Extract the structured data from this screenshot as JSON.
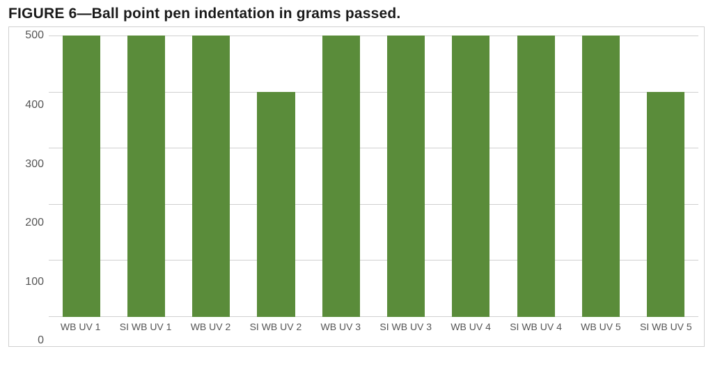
{
  "figure": {
    "title": "FIGURE 6—Ball point pen indentation in grams passed.",
    "title_fontsize": 21,
    "title_weight": "800",
    "title_color": "#1a1a1a"
  },
  "chart": {
    "type": "bar",
    "categories": [
      "WB UV 1",
      "SI WB UV 1",
      "WB UV 2",
      "SI WB UV 2",
      "WB UV 3",
      "SI WB UV 3",
      "WB UV 4",
      "SI WB UV 4",
      "WB UV 5",
      "SI WB UV 5"
    ],
    "values": [
      500,
      500,
      500,
      400,
      500,
      500,
      500,
      500,
      500,
      400
    ],
    "bar_color": "#5a8c3a",
    "bar_width": 0.58,
    "ylim": [
      0,
      500
    ],
    "ytick_step": 100,
    "yticks": [
      500,
      400,
      300,
      200,
      100,
      0
    ],
    "background_color": "#ffffff",
    "grid_color": "#d0d0d0",
    "frame_border_color": "#d0d0d0",
    "tick_label_fontsize": 16,
    "x_label_fontsize": 14,
    "tick_label_color": "#555555"
  }
}
